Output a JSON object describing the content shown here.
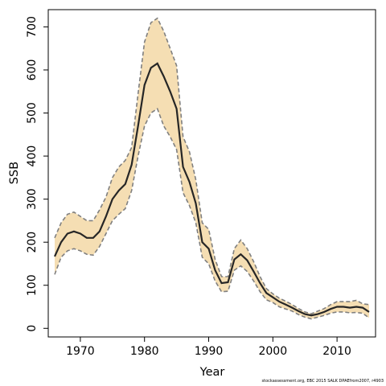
{
  "chart_data": {
    "type": "area",
    "xlabel": "Year",
    "ylabel": "SSB",
    "xlim": [
      1965,
      2016
    ],
    "ylim": [
      -20,
      740
    ],
    "x_ticks": [
      1970,
      1980,
      1990,
      2000,
      2010
    ],
    "y_ticks": [
      0,
      100,
      200,
      300,
      400,
      500,
      600,
      700
    ],
    "grid": false,
    "colors": {
      "band": "#f5deb3",
      "bounds": "#808080",
      "estimate": "#262626"
    },
    "x": [
      1966,
      1967,
      1968,
      1969,
      1970,
      1971,
      1972,
      1973,
      1974,
      1975,
      1976,
      1977,
      1978,
      1979,
      1980,
      1981,
      1982,
      1983,
      1984,
      1985,
      1986,
      1987,
      1988,
      1989,
      1990,
      1991,
      1992,
      1993,
      1994,
      1995,
      1996,
      1997,
      1998,
      1999,
      2000,
      2001,
      2002,
      2003,
      2004,
      2005,
      2006,
      2007,
      2008,
      2009,
      2010,
      2011,
      2012,
      2013,
      2014,
      2015
    ],
    "series": [
      {
        "role": "estimate",
        "values": [
          167,
          200,
          220,
          225,
          220,
          210,
          210,
          225,
          260,
          300,
          320,
          335,
          380,
          470,
          565,
          605,
          615,
          585,
          550,
          510,
          375,
          340,
          290,
          200,
          185,
          135,
          105,
          107,
          160,
          172,
          158,
          132,
          105,
          82,
          72,
          62,
          55,
          48,
          40,
          33,
          30,
          33,
          38,
          45,
          50,
          50,
          48,
          50,
          48,
          38
        ]
      },
      {
        "role": "upper",
        "values": [
          210,
          245,
          265,
          270,
          260,
          250,
          250,
          275,
          305,
          350,
          375,
          390,
          420,
          545,
          665,
          710,
          720,
          690,
          650,
          610,
          445,
          410,
          345,
          245,
          230,
          160,
          120,
          120,
          185,
          205,
          185,
          155,
          120,
          92,
          80,
          70,
          63,
          55,
          46,
          38,
          34,
          40,
          46,
          55,
          62,
          62,
          62,
          65,
          57,
          55
        ]
      },
      {
        "role": "lower",
        "values": [
          125,
          165,
          180,
          185,
          180,
          172,
          170,
          190,
          220,
          250,
          265,
          278,
          320,
          400,
          470,
          500,
          510,
          470,
          445,
          415,
          315,
          285,
          245,
          165,
          150,
          110,
          85,
          86,
          135,
          145,
          132,
          110,
          85,
          66,
          60,
          50,
          45,
          40,
          32,
          26,
          22,
          26,
          30,
          35,
          38,
          38,
          36,
          37,
          35,
          24
        ]
      }
    ]
  },
  "footnote": "stockassessment.org, EBC 2015 SALK DPAEfrom2007, r4903"
}
